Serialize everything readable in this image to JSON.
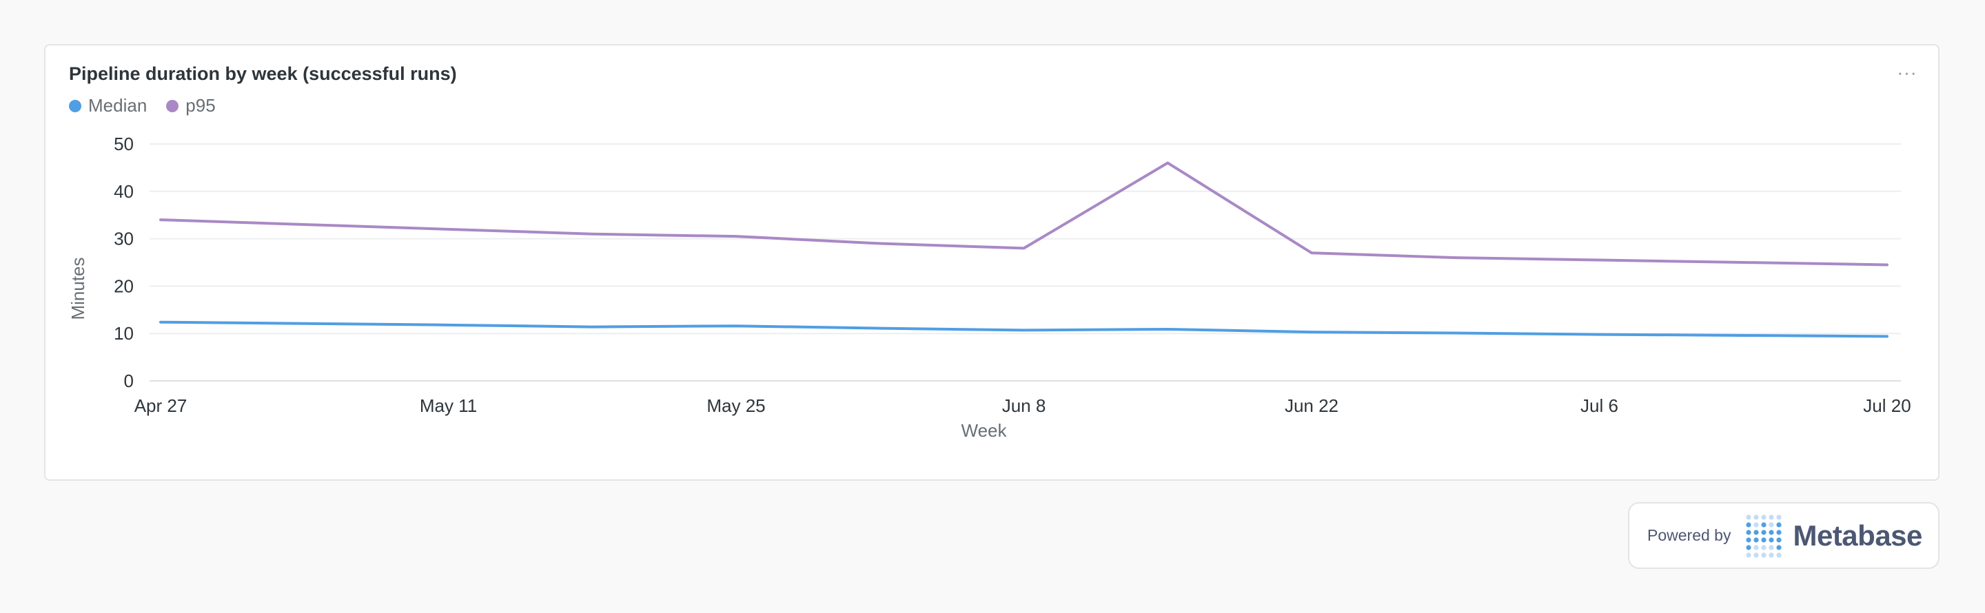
{
  "card": {
    "title": "Pipeline duration by week (successful runs)",
    "more_label": "···"
  },
  "legend": [
    {
      "label": "Median",
      "color": "#509ee3"
    },
    {
      "label": "p95",
      "color": "#a989c5"
    }
  ],
  "chart_data": {
    "type": "line",
    "title": "Pipeline duration by week (successful runs)",
    "xlabel": "Week",
    "ylabel": "Minutes",
    "x": [
      "Apr 27",
      "May 4",
      "May 11",
      "May 18",
      "May 25",
      "Jun 1",
      "Jun 8",
      "Jun 15",
      "Jun 22",
      "Jun 29",
      "Jul 6",
      "Jul 13",
      "Jul 20"
    ],
    "x_tick_labels": [
      "Apr 27",
      "May 11",
      "May 25",
      "Jun 8",
      "Jun 22",
      "Jul 6",
      "Jul 20"
    ],
    "ylim": [
      0,
      50
    ],
    "y_ticks": [
      0,
      10,
      20,
      30,
      40,
      50
    ],
    "grid": true,
    "legend_position": "top-left",
    "series": [
      {
        "name": "Median",
        "color": "#509ee3",
        "values": [
          12.4,
          12.1,
          11.8,
          11.4,
          11.6,
          11.1,
          10.7,
          10.9,
          10.3,
          10.1,
          9.8,
          9.6,
          9.4
        ]
      },
      {
        "name": "p95",
        "color": "#a989c5",
        "values": [
          34.0,
          33.0,
          32.0,
          31.0,
          30.5,
          29.0,
          28.0,
          46.0,
          27.0,
          26.0,
          25.5,
          25.0,
          24.5
        ]
      }
    ]
  },
  "branding": {
    "powered_by": "Powered by",
    "name": "Metabase",
    "logo_color": "#509ee3"
  }
}
